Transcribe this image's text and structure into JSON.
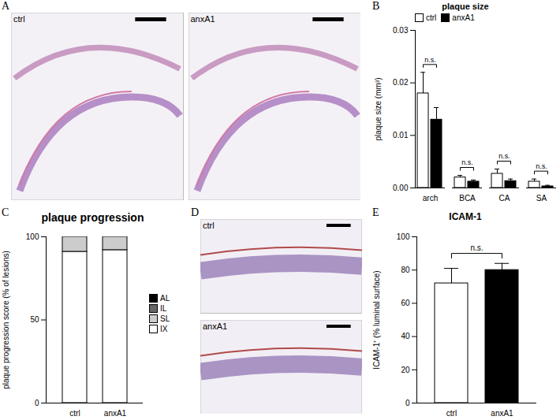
{
  "chart_data": [
    {
      "panel": "B",
      "type": "bar",
      "title": "plaque size",
      "y_label": "plaque size (mm³)",
      "categories": [
        "arch",
        "BCA",
        "CA",
        "SA"
      ],
      "series": [
        {
          "name": "ctrl",
          "color": "#ffffff",
          "values": [
            0.018,
            0.002,
            0.0027,
            0.0012
          ],
          "errors": [
            0.004,
            0.0004,
            0.0009,
            0.0005
          ]
        },
        {
          "name": "anxA1",
          "color": "#000000",
          "values": [
            0.013,
            0.0012,
            0.0013,
            0.0003
          ],
          "errors": [
            0.0023,
            0.0003,
            0.0004,
            0.0002
          ]
        }
      ],
      "annotations": [
        "n.s.",
        "n.s.",
        "n.s.",
        "n.s."
      ],
      "ylim": [
        0,
        0.03
      ],
      "yticks": [
        {
          "value": 0,
          "label": "0.00"
        },
        {
          "value": 0.01,
          "label": "0.01"
        },
        {
          "value": 0.02,
          "label": "0.02"
        },
        {
          "value": 0.03,
          "label": "0.03"
        }
      ],
      "legend": "upper left"
    },
    {
      "panel": "C",
      "type": "bar",
      "stacked": true,
      "title": "plaque progression",
      "y_label": "plaque progression score (% of lesions)",
      "categories": [
        "ctrl",
        "anxA1"
      ],
      "series": [
        {
          "name": "AL",
          "color": "#000000",
          "values": [
            0,
            0
          ]
        },
        {
          "name": "IL",
          "color": "#666666",
          "values": [
            0,
            0
          ]
        },
        {
          "name": "SL",
          "color": "#cccccc",
          "values": [
            9,
            8
          ]
        },
        {
          "name": "IX",
          "color": "#ffffff",
          "values": [
            91,
            92
          ]
        }
      ],
      "ylim": [
        0,
        100
      ],
      "yticks": [
        0,
        50,
        100
      ],
      "legend": "right"
    },
    {
      "panel": "E",
      "type": "bar",
      "title": "ICAM-1",
      "y_label": "ICAM-1⁺ (% luminal surface)",
      "categories": [
        "ctrl",
        "anxA1"
      ],
      "values": [
        72,
        80
      ],
      "errors": [
        9,
        4
      ],
      "colors": [
        "#ffffff",
        "#000000"
      ],
      "annotations": [
        "n.s."
      ],
      "ylim": [
        0,
        100
      ],
      "yticks": [
        0,
        20,
        40,
        60,
        80,
        100
      ]
    }
  ],
  "images": [
    {
      "panel": "A",
      "labels": [
        "ctrl",
        "anxA1"
      ]
    },
    {
      "panel": "D",
      "labels": [
        "ctrl",
        "anxA1"
      ]
    }
  ]
}
